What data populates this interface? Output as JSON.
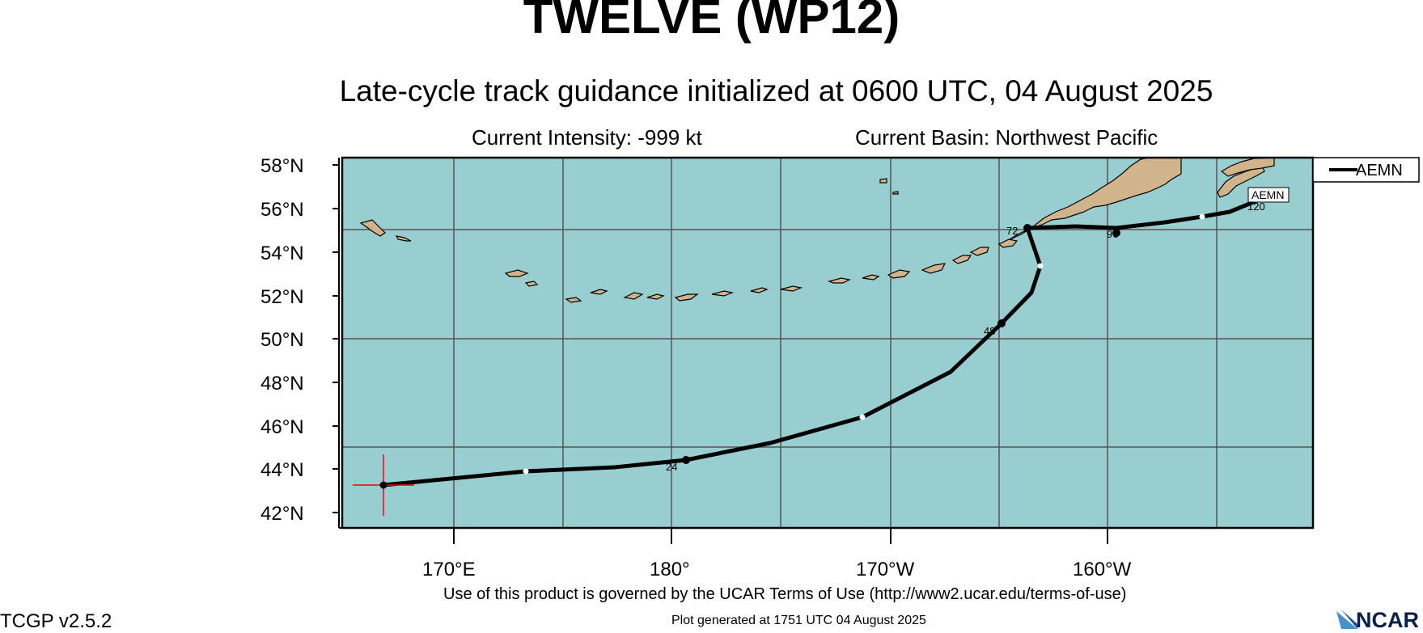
{
  "header": {
    "title": "TWELVE (WP12)",
    "subtitle": "Late-cycle track guidance initialized at 0600 UTC, 04 August 2025",
    "intensity": "Current Intensity: -999 kt",
    "basin": "Current Basin: Northwest Pacific"
  },
  "map": {
    "ocean_color": "#98cecf",
    "land_color": "#d2b48c",
    "lat_labels": [
      "58°N",
      "56°N",
      "54°N",
      "52°N",
      "50°N",
      "48°N",
      "46°N",
      "44°N",
      "42°N"
    ],
    "lon_labels": [
      "170°E",
      "180°",
      "170°W",
      "160°W"
    ],
    "track": {
      "name": "AEMN",
      "hour_labels": [
        "24",
        "48",
        "72",
        "96",
        "120"
      ],
      "marker_color": "#ff0000"
    },
    "legend": {
      "entry": "AEMN"
    }
  },
  "footer": {
    "terms": "Use of this product is governed by the UCAR Terms of Use (http://www2.ucar.edu/terms-of-use)",
    "generated": "Plot generated at 1751 UTC   04 August 2025",
    "version": "TCGP v2.5.2",
    "logo_text": "NCAR"
  }
}
